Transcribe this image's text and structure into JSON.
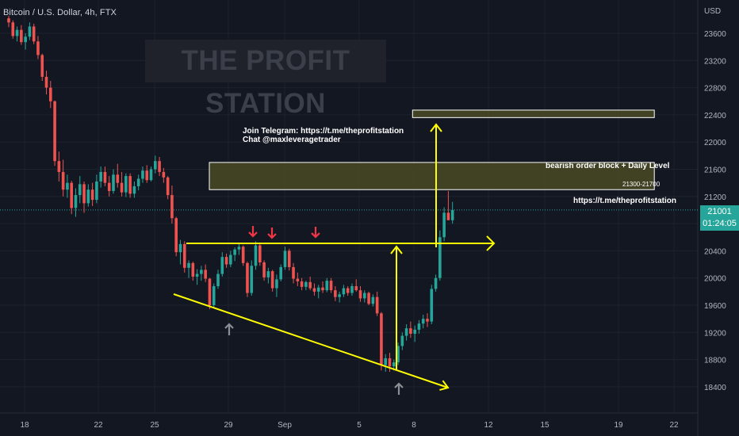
{
  "header": {
    "symbol_title": "Bitcoin / U.S. Dollar, 4h, FTX"
  },
  "watermark": "THE PROFIT STATION",
  "annotations": {
    "telegram_line1": "Join Telegram: https://t.me/theprofitstation",
    "telegram_line2": "Chat @maxleveragetrader",
    "order_block_label": "bearish order block  + Daily Level",
    "zone_range_label": "21300-21700",
    "site_link": "https://t.me/theprofitstation"
  },
  "price_axis": {
    "unit": "USD",
    "last_price": "21001",
    "countdown": "01:24:05"
  },
  "colors": {
    "background": "#131722",
    "up": "#26a69a",
    "down": "#ef5350",
    "annotation": "#ffff00",
    "marker_down": "#f23645",
    "marker_up": "#8b8e95",
    "grid": "#1e222d"
  },
  "chart_data": {
    "type": "candlestick",
    "title": "Bitcoin / U.S. Dollar, 4h, FTX",
    "ylabel": "USD",
    "ylim": [
      18150,
      23850
    ],
    "y_ticks": [
      "23600",
      "23200",
      "22800",
      "22400",
      "22000",
      "21600",
      "21200",
      "20800",
      "20400",
      "20000",
      "19600",
      "19200",
      "18800",
      "18400"
    ],
    "x_ticks": [
      "18",
      "22",
      "25",
      "29",
      "Sep",
      "5",
      "8",
      "12",
      "15",
      "19",
      "22"
    ],
    "last_price": 21001,
    "zones": [
      {
        "low": 22360,
        "high": 22470,
        "x_from": "Sep 8",
        "x_to": "Sep 21"
      },
      {
        "low": 21300,
        "high": 21700,
        "x_from": "Aug 28",
        "x_to": "Sep 21",
        "label": "21300-21700"
      }
    ],
    "trendlines": [
      {
        "name": "resistance",
        "from": [
          "Aug 26",
          20510
        ],
        "to": [
          "Sep 11",
          20510
        ],
        "arrow": true
      },
      {
        "name": "descending support",
        "from": [
          "Aug 26",
          19870
        ],
        "to": [
          "Sep 9",
          18370
        ],
        "arrow": true
      }
    ],
    "candles": [
      [
        23820,
        23860,
        23690,
        23760
      ],
      [
        23760,
        23790,
        23520,
        23560
      ],
      [
        23560,
        23700,
        23480,
        23650
      ],
      [
        23650,
        23720,
        23430,
        23470
      ],
      [
        23470,
        23600,
        23360,
        23550
      ],
      [
        23550,
        23760,
        23500,
        23700
      ],
      [
        23700,
        23740,
        23440,
        23480
      ],
      [
        23480,
        23560,
        23220,
        23280
      ],
      [
        23280,
        23300,
        22900,
        22960
      ],
      [
        22960,
        23050,
        22700,
        22800
      ],
      [
        22800,
        22900,
        22500,
        22600
      ],
      [
        22600,
        22610,
        21650,
        21720
      ],
      [
        21720,
        21860,
        21420,
        21560
      ],
      [
        21560,
        21740,
        21200,
        21300
      ],
      [
        21300,
        21520,
        21180,
        21400
      ],
      [
        21400,
        21430,
        20940,
        21030
      ],
      [
        21030,
        21320,
        20900,
        21220
      ],
      [
        21220,
        21500,
        21100,
        21380
      ],
      [
        21380,
        21420,
        20960,
        21100
      ],
      [
        21100,
        21380,
        21050,
        21300
      ],
      [
        21300,
        21400,
        21060,
        21150
      ],
      [
        21150,
        21520,
        21100,
        21420
      ],
      [
        21420,
        21640,
        21330,
        21560
      ],
      [
        21560,
        21640,
        21350,
        21400
      ],
      [
        21400,
        21500,
        21200,
        21280
      ],
      [
        21280,
        21600,
        21240,
        21520
      ],
      [
        21520,
        21680,
        21330,
        21400
      ],
      [
        21400,
        21560,
        21200,
        21260
      ],
      [
        21260,
        21540,
        21190,
        21500
      ],
      [
        21500,
        21540,
        21180,
        21240
      ],
      [
        21240,
        21420,
        21180,
        21350
      ],
      [
        21350,
        21520,
        21290,
        21460
      ],
      [
        21460,
        21640,
        21400,
        21580
      ],
      [
        21580,
        21660,
        21400,
        21440
      ],
      [
        21440,
        21640,
        21420,
        21600
      ],
      [
        21600,
        21800,
        21540,
        21720
      ],
      [
        21720,
        21780,
        21500,
        21560
      ],
      [
        21560,
        21620,
        21400,
        21480
      ],
      [
        21480,
        21500,
        21160,
        21220
      ],
      [
        21220,
        21360,
        20800,
        20880
      ],
      [
        20880,
        20900,
        20320,
        20380
      ],
      [
        20380,
        20560,
        20200,
        20500
      ],
      [
        20500,
        20540,
        20080,
        20150
      ],
      [
        20150,
        20260,
        20000,
        20220
      ],
      [
        20220,
        20240,
        19960,
        20020
      ],
      [
        20020,
        20130,
        19900,
        20060
      ],
      [
        20060,
        20180,
        19960,
        20120
      ],
      [
        20120,
        20200,
        19940,
        19990
      ],
      [
        19990,
        20000,
        19540,
        19600
      ],
      [
        19600,
        19920,
        19560,
        19880
      ],
      [
        19880,
        20120,
        19840,
        20060
      ],
      [
        20060,
        20380,
        20020,
        20310
      ],
      [
        20310,
        20360,
        20150,
        20200
      ],
      [
        20200,
        20400,
        20160,
        20340
      ],
      [
        20340,
        20450,
        20250,
        20420
      ],
      [
        20420,
        20520,
        20340,
        20460
      ],
      [
        20460,
        20480,
        20180,
        20220
      ],
      [
        20220,
        20240,
        19720,
        19780
      ],
      [
        19780,
        20260,
        19740,
        20180
      ],
      [
        20180,
        20540,
        20120,
        20480
      ],
      [
        20480,
        20520,
        20180,
        20230
      ],
      [
        20230,
        20260,
        19960,
        20010
      ],
      [
        20010,
        20150,
        19920,
        20100
      ],
      [
        20100,
        20120,
        19800,
        19850
      ],
      [
        19850,
        20050,
        19720,
        19980
      ],
      [
        19980,
        20200,
        19950,
        20160
      ],
      [
        20160,
        20460,
        20120,
        20400
      ],
      [
        20400,
        20430,
        20110,
        20160
      ],
      [
        20160,
        20220,
        19920,
        19990
      ],
      [
        19990,
        20080,
        19880,
        19950
      ],
      [
        19950,
        20000,
        19820,
        19870
      ],
      [
        19870,
        19960,
        19820,
        19940
      ],
      [
        19940,
        20020,
        19820,
        19850
      ],
      [
        19850,
        19920,
        19740,
        19800
      ],
      [
        19800,
        19900,
        19700,
        19860
      ],
      [
        19860,
        19950,
        19780,
        19820
      ],
      [
        19820,
        20000,
        19790,
        19960
      ],
      [
        19960,
        20000,
        19780,
        19820
      ],
      [
        19820,
        19880,
        19660,
        19720
      ],
      [
        19720,
        19800,
        19640,
        19760
      ],
      [
        19760,
        19900,
        19720,
        19850
      ],
      [
        19850,
        19880,
        19740,
        19780
      ],
      [
        19780,
        19920,
        19740,
        19880
      ],
      [
        19880,
        19980,
        19800,
        19820
      ],
      [
        19820,
        19880,
        19650,
        19700
      ],
      [
        19700,
        19820,
        19640,
        19780
      ],
      [
        19780,
        19800,
        19600,
        19620
      ],
      [
        19620,
        19760,
        19580,
        19720
      ],
      [
        19720,
        19800,
        19440,
        19480
      ],
      [
        19480,
        19500,
        18640,
        18720
      ],
      [
        18720,
        18880,
        18620,
        18820
      ],
      [
        18820,
        18900,
        18620,
        18700
      ],
      [
        18700,
        18800,
        18640,
        18760
      ],
      [
        18760,
        19050,
        18720,
        19000
      ],
      [
        19000,
        19200,
        18940,
        19150
      ],
      [
        19150,
        19320,
        19080,
        19260
      ],
      [
        19260,
        19360,
        19120,
        19180
      ],
      [
        19180,
        19300,
        19060,
        19240
      ],
      [
        19240,
        19380,
        19180,
        19330
      ],
      [
        19330,
        19460,
        19260,
        19400
      ],
      [
        19400,
        19480,
        19280,
        19360
      ],
      [
        19360,
        19900,
        19320,
        19840
      ],
      [
        19840,
        20050,
        19800,
        20000
      ],
      [
        20000,
        20700,
        19960,
        20600
      ],
      [
        20600,
        21040,
        20540,
        20960
      ],
      [
        20960,
        21280,
        20880,
        20850
      ],
      [
        20850,
        21120,
        20800,
        21001
      ]
    ]
  }
}
